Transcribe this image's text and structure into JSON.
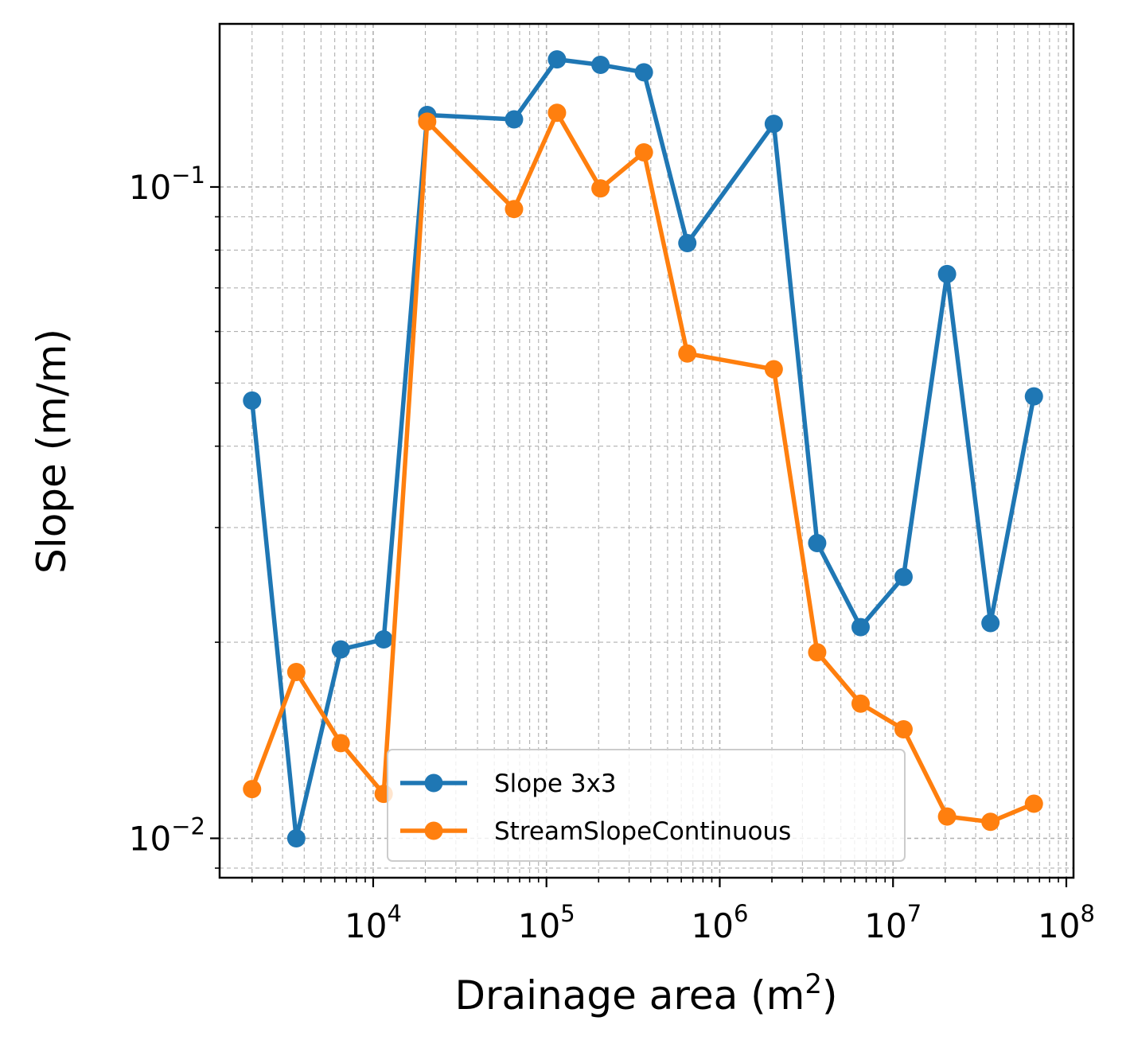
{
  "chart_data": {
    "type": "line",
    "xlabel": "Drainage area (m",
    "xlabel_sup": "2",
    "xlabel_tail": ")",
    "ylabel": "Slope (m/m)",
    "xscale": "log",
    "yscale": "log",
    "xlim": [
      1300,
      110000000
    ],
    "ylim": [
      0.0087,
      0.178
    ],
    "x_ticks": [
      {
        "base": "10",
        "exp": "4",
        "value": 10000
      },
      {
        "base": "10",
        "exp": "5",
        "value": 100000
      },
      {
        "base": "10",
        "exp": "6",
        "value": 1000000
      },
      {
        "base": "10",
        "exp": "7",
        "value": 10000000
      },
      {
        "base": "10",
        "exp": "8",
        "value": 100000000
      }
    ],
    "y_ticks": [
      {
        "base": "10",
        "exp": "−1",
        "value": 0.1
      },
      {
        "base": "10",
        "exp": "−2",
        "value": 0.01
      }
    ],
    "grid": true,
    "legend_position": "lower center",
    "series": [
      {
        "name": "Slope 3x3",
        "color": "#1f77b4",
        "x": [
          2000,
          3600,
          6500,
          11500,
          20500,
          65000,
          115000,
          205000,
          365000,
          650000,
          2050000,
          3650000,
          6500000,
          11500000,
          20500000,
          36500000,
          65000000
        ],
        "y": [
          0.047,
          0.01,
          0.0195,
          0.0202,
          0.129,
          0.127,
          0.157,
          0.154,
          0.15,
          0.082,
          0.125,
          0.0284,
          0.0211,
          0.0252,
          0.0735,
          0.0214,
          0.0477
        ]
      },
      {
        "name": "StreamSlopeContinuous",
        "color": "#ff7f0e",
        "x": [
          2000,
          3600,
          6500,
          11500,
          20500,
          65000,
          115000,
          205000,
          365000,
          650000,
          2050000,
          3650000,
          6500000,
          11500000,
          20500000,
          36500000,
          65000000
        ],
        "y": [
          0.0119,
          0.018,
          0.014,
          0.0117,
          0.126,
          0.0925,
          0.13,
          0.0995,
          0.113,
          0.0555,
          0.0525,
          0.0193,
          0.0161,
          0.0147,
          0.0108,
          0.0106,
          0.0113
        ]
      }
    ]
  }
}
